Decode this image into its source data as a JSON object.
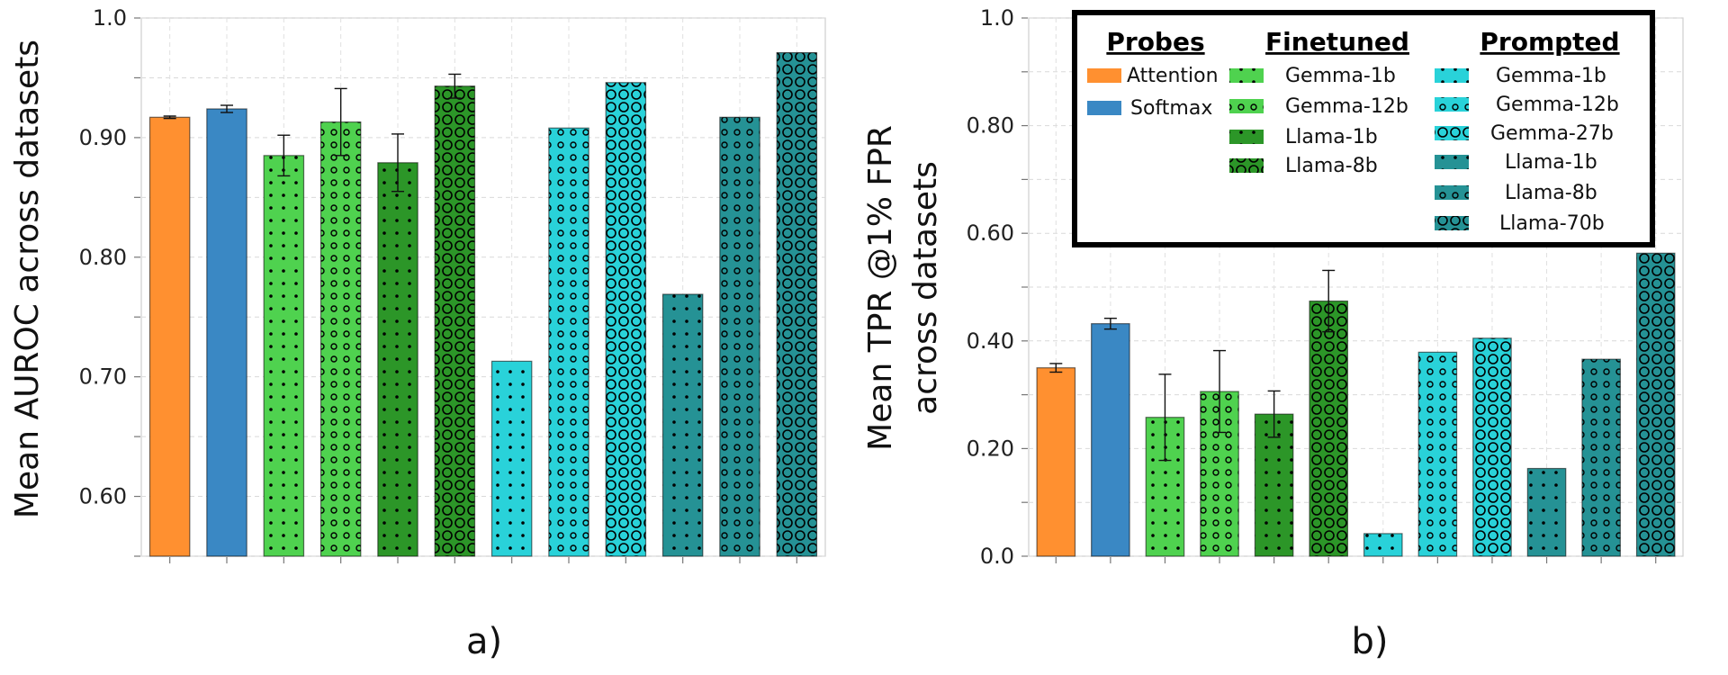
{
  "chart_data": [
    {
      "type": "bar",
      "panel_label": "a)",
      "title": "",
      "xlabel": "",
      "ylabel": "Mean AUROC across datasets",
      "ylim": [
        0.55,
        1.0
      ],
      "yticks": [
        0.6,
        0.7,
        0.8,
        0.9,
        1.0
      ],
      "ytick_labels": [
        "0.60",
        "0.70",
        "0.80",
        "0.90",
        "1.0"
      ],
      "grid": true,
      "categories": [
        "Probes Attention",
        "Probes Softmax",
        "Finetuned Gemma-1b",
        "Finetuned Gemma-12b",
        "Finetuned Llama-1b",
        "Finetuned Llama-8b",
        "Prompted Gemma-1b",
        "Prompted Gemma-12b",
        "Prompted Gemma-27b",
        "Prompted Llama-1b",
        "Prompted Llama-8b",
        "Prompted Llama-70b"
      ],
      "values": [
        0.917,
        0.924,
        0.885,
        0.913,
        0.879,
        0.943,
        0.713,
        0.908,
        0.946,
        0.769,
        0.917,
        0.971
      ],
      "errors": [
        0.001,
        0.003,
        0.017,
        0.028,
        0.024,
        0.01,
        null,
        null,
        null,
        null,
        null,
        null
      ]
    },
    {
      "type": "bar",
      "panel_label": "b)",
      "title": "",
      "xlabel": "",
      "ylabel": "Mean TPR @1% FPR across datasets",
      "ylabel_lines": [
        "Mean TPR @1% FPR",
        "across datasets"
      ],
      "ylim": [
        0.0,
        1.0
      ],
      "yticks": [
        0.0,
        0.2,
        0.4,
        0.6,
        0.8,
        1.0
      ],
      "ytick_labels": [
        "0.0",
        "0.20",
        "0.40",
        "0.60",
        "0.80",
        "1.0"
      ],
      "grid": true,
      "categories": [
        "Probes Attention",
        "Probes Softmax",
        "Finetuned Gemma-1b",
        "Finetuned Gemma-12b",
        "Finetuned Llama-1b",
        "Finetuned Llama-8b",
        "Prompted Gemma-1b",
        "Prompted Gemma-12b",
        "Prompted Gemma-27b",
        "Prompted Llama-1b",
        "Prompted Llama-8b",
        "Prompted Llama-70b"
      ],
      "values": [
        0.35,
        0.432,
        0.258,
        0.306,
        0.264,
        0.474,
        0.042,
        0.379,
        0.405,
        0.163,
        0.366,
        0.563
      ],
      "errors": [
        0.008,
        0.01,
        0.08,
        0.076,
        0.043,
        0.057,
        null,
        null,
        null,
        null,
        null,
        null
      ]
    }
  ],
  "legend": {
    "placement": "top-right of panel b",
    "groups": [
      {
        "heading": "Probes",
        "entries": [
          {
            "label": "Attention",
            "style": "s0"
          },
          {
            "label": "Softmax",
            "style": "s1"
          }
        ]
      },
      {
        "heading": "Finetuned",
        "entries": [
          {
            "label": "Gemma-1b",
            "style": "s2"
          },
          {
            "label": "Gemma-12b",
            "style": "s3"
          },
          {
            "label": "Llama-1b",
            "style": "s4"
          },
          {
            "label": "Llama-8b",
            "style": "s5"
          }
        ]
      },
      {
        "heading": "Prompted",
        "entries": [
          {
            "label": "Gemma-1b",
            "style": "s6"
          },
          {
            "label": "Gemma-12b",
            "style": "s7"
          },
          {
            "label": "Gemma-27b",
            "style": "s8"
          },
          {
            "label": "Llama-1b",
            "style": "s9"
          },
          {
            "label": "Llama-8b",
            "style": "s10"
          },
          {
            "label": "Llama-70b",
            "style": "s11"
          }
        ]
      }
    ]
  },
  "colors": {
    "attention": "#ff9030",
    "softmax": "#3a88c4",
    "finetuned_gemma": "#4fd24f",
    "finetuned_llama": "#2c9628",
    "prompted_gemma": "#29d2d9",
    "prompted_llama": "#259295"
  }
}
